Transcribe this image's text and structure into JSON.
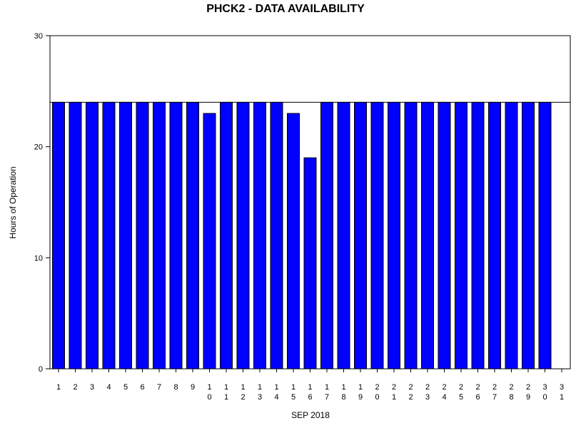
{
  "chart_data": {
    "type": "bar",
    "title": "PHCK2 - DATA AVAILABILITY",
    "xlabel": "SEP 2018",
    "ylabel": "Hours of Operation",
    "ylim": [
      0,
      30
    ],
    "yticks": [
      "0",
      "10",
      "20",
      "30"
    ],
    "reference_line": 24,
    "grid": false,
    "bar_color": "#0000ff",
    "bar_edge_color": "#000000",
    "categories": [
      "1",
      "2",
      "3",
      "4",
      "5",
      "6",
      "7",
      "8",
      "9",
      "10",
      "11",
      "12",
      "13",
      "14",
      "15",
      "16",
      "17",
      "18",
      "19",
      "20",
      "21",
      "22",
      "23",
      "24",
      "25",
      "26",
      "27",
      "28",
      "29",
      "30",
      "31"
    ],
    "values": [
      24,
      24,
      24,
      24,
      24,
      24,
      24,
      24,
      24,
      23,
      24,
      24,
      24,
      24,
      23,
      19,
      24,
      24,
      24,
      24,
      24,
      24,
      24,
      24,
      24,
      24,
      24,
      24,
      24,
      24,
      null
    ]
  }
}
